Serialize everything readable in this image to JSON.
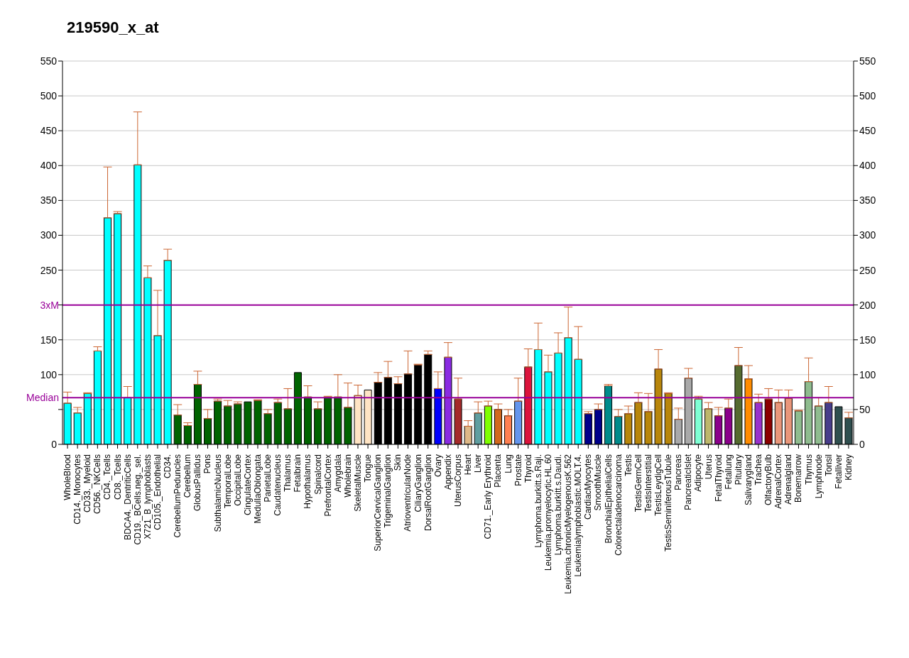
{
  "chart_data": {
    "type": "bar",
    "title": "219590_x_at",
    "categories": [
      "WholeBlood",
      "CD14._Monocytes",
      "CD33._Myeloid",
      "CD56._NKCells",
      "CD4._Tcells",
      "CD8._Tcells",
      "BDCA4._DentriticCells",
      "CD19._BCells.neg._sel.",
      "X721_B_lymphoblasts",
      "CD105._Endothelial",
      "CD34.",
      "CerebellumPeduncles",
      "Cerebellum",
      "GlobusPallidus",
      "Pons",
      "SubthalamicNucleus",
      "TemporalLobe",
      "OccipitalLobe",
      "CingulateCortex",
      "MedullaOblongata",
      "ParietalLobe",
      "Caudatenucleus",
      "Thalamus",
      "Fetalbrain",
      "Hypothalamus",
      "Spinalcord",
      "PrefrontalCortex",
      "Amygdala",
      "Wholebrain",
      "SkeletalMuscle",
      "Tongue",
      "SuperiorCervicalGanglion",
      "TrigeminalGanglion",
      "Skin",
      "AtrioventricularNode",
      "CiliaryGanglion",
      "DorsalRootGanglion",
      "Ovary",
      "Appendix",
      "UterusCorpus",
      "Heart",
      "Liver",
      "CD71._Early Erythroid",
      "Placenta",
      "Lung",
      "Prostate",
      "Thyroid",
      "Lymphoma.burkitt.s.Raji.",
      "Leukemia.promyelocytic.HL.60",
      "Lymphoma.burkitt.s.Daudi.",
      "Leukemia.chronicMyelogenousK.562",
      "Leukemialymphoblastic.MOLT.4.",
      "CardiacMyocytes",
      "SmoothMuscle",
      "BronchialEpithelialCells",
      "Colorectaladenocarcinoma",
      "Testis",
      "TestisGermCell",
      "TestisInterstitial",
      "TestisLeydigCell",
      "TestisSeminiferousTubule",
      "Pancreas",
      "PancreaticIslet",
      "Adipocyte",
      "Uterus",
      "FetalThyroid",
      "Fetallung",
      "Pituitary",
      "Salivarygland",
      "Trachea",
      "OlfactoryBulb",
      "AdrenalCortex",
      "Adrenalgland",
      "Bonemarrow",
      "Thymus",
      "Lymphnode",
      "Tonsil",
      "Fetalliver",
      "Kidney"
    ],
    "values": [
      59,
      45,
      73,
      134,
      325,
      331,
      67,
      401,
      239,
      156,
      264,
      42,
      27,
      86,
      37,
      62,
      55,
      58,
      61,
      63,
      44,
      60,
      51,
      103,
      68,
      51,
      68,
      68,
      53,
      70,
      78,
      89,
      96,
      87,
      101,
      114,
      129,
      80,
      125,
      65,
      26,
      45,
      55,
      50,
      41,
      62,
      111,
      136,
      104,
      131,
      153,
      122,
      44,
      50,
      84,
      40,
      44,
      60,
      47,
      108,
      73,
      36,
      95,
      65,
      51,
      41,
      52,
      113,
      94,
      60,
      65,
      60,
      66,
      48,
      90,
      55,
      60,
      54,
      38
    ],
    "errors": [
      [
        59,
        75
      ],
      [
        45,
        53
      ],
      [
        73,
        74
      ],
      [
        134,
        140
      ],
      [
        325,
        398
      ],
      [
        331,
        334
      ],
      [
        67,
        83
      ],
      [
        401,
        477
      ],
      [
        239,
        256
      ],
      [
        156,
        221
      ],
      [
        264,
        280
      ],
      [
        42,
        57
      ],
      [
        27,
        31
      ],
      [
        86,
        105
      ],
      [
        37,
        50
      ],
      [
        62,
        65
      ],
      [
        55,
        63
      ],
      [
        58,
        61
      ],
      null,
      [
        63,
        64
      ],
      [
        44,
        50
      ],
      [
        60,
        65
      ],
      [
        51,
        80
      ],
      null,
      [
        68,
        84
      ],
      [
        51,
        61
      ],
      [
        68,
        69
      ],
      [
        68,
        100
      ],
      [
        53,
        88
      ],
      [
        70,
        85
      ],
      null,
      [
        89,
        103
      ],
      [
        96,
        119
      ],
      [
        87,
        97
      ],
      [
        101,
        134
      ],
      [
        114,
        115
      ],
      [
        129,
        134
      ],
      [
        80,
        104
      ],
      [
        125,
        146
      ],
      [
        65,
        95
      ],
      [
        26,
        34
      ],
      [
        45,
        61
      ],
      [
        55,
        62
      ],
      [
        50,
        58
      ],
      [
        41,
        50
      ],
      [
        62,
        95
      ],
      [
        111,
        137
      ],
      [
        136,
        174
      ],
      [
        104,
        128
      ],
      [
        131,
        160
      ],
      [
        153,
        197
      ],
      [
        122,
        169
      ],
      [
        44,
        47
      ],
      [
        50,
        58
      ],
      [
        84,
        86
      ],
      [
        40,
        50
      ],
      [
        44,
        55
      ],
      [
        60,
        74
      ],
      [
        47,
        73
      ],
      [
        108,
        136
      ],
      [
        73,
        74
      ],
      [
        36,
        52
      ],
      [
        95,
        109
      ],
      [
        65,
        69
      ],
      [
        51,
        60
      ],
      [
        41,
        53
      ],
      [
        52,
        65
      ],
      [
        113,
        139
      ],
      [
        94,
        113
      ],
      [
        60,
        72
      ],
      [
        65,
        80
      ],
      [
        60,
        78
      ],
      [
        66,
        78
      ],
      [
        48,
        49
      ],
      [
        90,
        124
      ],
      [
        55,
        67
      ],
      [
        60,
        83
      ],
      null,
      [
        38,
        46
      ]
    ],
    "colors": [
      "#00ffff",
      "#00ffff",
      "#00ffff",
      "#00ffff",
      "#00ffff",
      "#00ffff",
      "#00ffff",
      "#00ffff",
      "#00ffff",
      "#00ffff",
      "#00ffff",
      "#006400",
      "#006400",
      "#006400",
      "#006400",
      "#006400",
      "#006400",
      "#006400",
      "#006400",
      "#006400",
      "#006400",
      "#006400",
      "#006400",
      "#006400",
      "#006400",
      "#006400",
      "#006400",
      "#006400",
      "#006400",
      "#ffe4c4",
      "#ffe4c4",
      "#000000",
      "#000000",
      "#000000",
      "#000000",
      "#000000",
      "#000000",
      "#0000ff",
      "#8a2be2",
      "#a52a2a",
      "#deb887",
      "#5f9ea0",
      "#7fff00",
      "#d2691e",
      "#ff7f50",
      "#6495ed",
      "#dc143c",
      "#00ffff",
      "#00ffff",
      "#00ffff",
      "#00ffff",
      "#00ffff",
      "#00008b",
      "#00008b",
      "#008b8b",
      "#008b8b",
      "#b8860b",
      "#b8860b",
      "#b8860b",
      "#b8860b",
      "#b8860b",
      "#a9a9a9",
      "#a9a9a9",
      "#7fffd4",
      "#bdb76b",
      "#8b008b",
      "#8b008b",
      "#556b2f",
      "#ff8c00",
      "#9932cc",
      "#8b0000",
      "#e9967a",
      "#e9967a",
      "#8fbc8f",
      "#8fbc8f",
      "#8fbc8f",
      "#483d8b",
      "#2f4f4f",
      "#2f4f4f"
    ],
    "ylim": [
      0,
      550
    ],
    "yticks": [
      0,
      {
        "value": 50,
        "label": null
      },
      100,
      150,
      {
        "value": 200,
        "label": null
      },
      250,
      300,
      350,
      400,
      450,
      500,
      550
    ],
    "y2lim": [
      0,
      550
    ],
    "y2ticks": [
      0,
      50,
      100,
      150,
      200,
      250,
      300,
      350,
      400,
      450,
      500,
      550
    ],
    "grid": "y",
    "ref_lines": [
      {
        "axis": "y",
        "value": 200,
        "label": "3xM",
        "color": "#990099"
      },
      {
        "axis": "y",
        "value": 67,
        "label": "Median",
        "color": "#990099"
      }
    ]
  }
}
